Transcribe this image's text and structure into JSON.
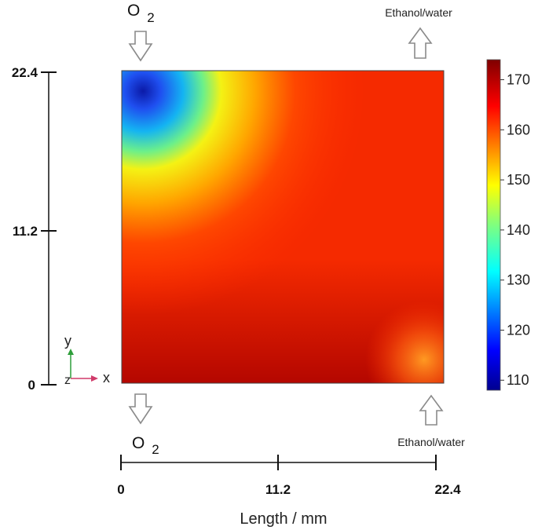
{
  "chart_data": {
    "type": "heatmap",
    "title": "",
    "xlabel": "Length / mm",
    "ylabel": "",
    "xlim": [
      0,
      22.4
    ],
    "ylim": [
      0,
      22.4
    ],
    "x_ticks": [
      "0",
      "11.2",
      "22.4"
    ],
    "y_ticks": [
      "0",
      "11.2",
      "22.4"
    ],
    "colorbar": {
      "min": 108,
      "max": 174,
      "ticks": [
        110,
        120,
        130,
        140,
        150,
        160,
        170
      ],
      "colormap": "jet"
    },
    "field_features": [
      {
        "feature": "minimum",
        "x": 1.5,
        "y": 21.0,
        "value": 108
      },
      {
        "feature": "local minimum",
        "x": 21.0,
        "y": 1.7,
        "value": 160
      },
      {
        "feature": "maximum",
        "x": 3.0,
        "y": 0.5,
        "value": 174
      }
    ],
    "annotations": {
      "o2_top": {
        "label": "O",
        "subscript": "2",
        "direction": "in"
      },
      "o2_bottom": {
        "label": "O",
        "subscript": "2",
        "direction": "in"
      },
      "ethanol_top": {
        "label": "Ethanol/water",
        "direction": "out"
      },
      "ethanol_bottom": {
        "label": "Ethanol/water",
        "direction": "in"
      }
    },
    "triad": {
      "y": "y",
      "z": "z",
      "x": "x"
    },
    "colors": {
      "triad_y": "#2e9e3a",
      "triad_x": "#d03a6a"
    }
  }
}
